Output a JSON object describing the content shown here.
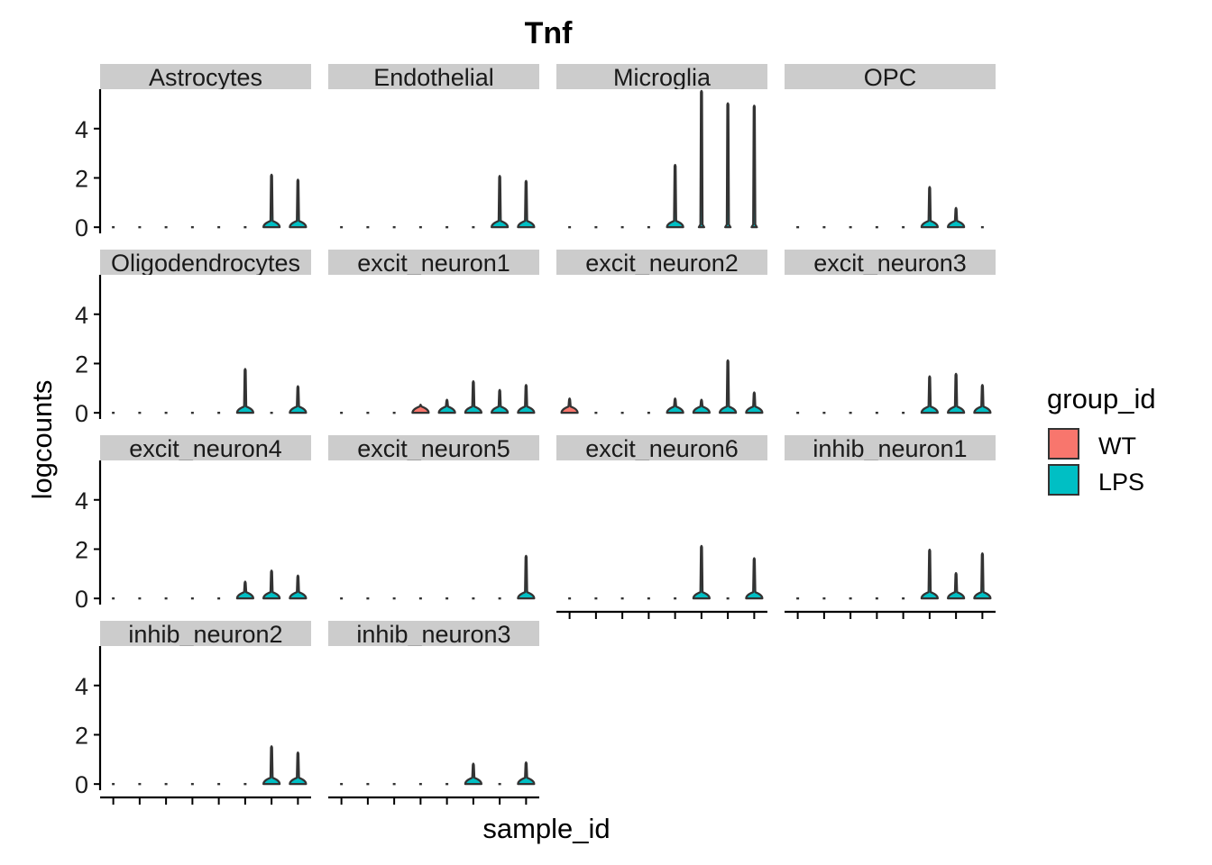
{
  "chart_data": {
    "type": "violin",
    "title": "Tnf",
    "xlabel": "sample_id",
    "ylabel": "logcounts",
    "ylim": [
      -0.25,
      5.6
    ],
    "yticks": [
      0,
      2,
      4
    ],
    "n_samples": 8,
    "legend": {
      "title": "group_id",
      "position": "right",
      "entries": [
        {
          "label": "WT",
          "color": "#F8766D"
        },
        {
          "label": "LPS",
          "color": "#00BFC4"
        }
      ]
    },
    "panels": [
      {
        "name": "Astrocytes",
        "max": [
          0,
          0,
          0,
          0,
          0,
          0,
          2.15,
          1.95
        ]
      },
      {
        "name": "Endothelial",
        "max": [
          0,
          0,
          0,
          0,
          0,
          0,
          2.1,
          1.9
        ]
      },
      {
        "name": "Microglia",
        "max": [
          0,
          0,
          0,
          0,
          2.55,
          5.55,
          5.05,
          4.95
        ]
      },
      {
        "name": "OPC",
        "max": [
          0,
          0,
          0,
          0,
          0,
          1.65,
          0.8,
          0
        ]
      },
      {
        "name": "Oligodendrocytes",
        "max": [
          0,
          0,
          0,
          0,
          0,
          1.8,
          0,
          1.1
        ]
      },
      {
        "name": "excit_neuron1",
        "max": [
          0,
          0,
          0,
          0.35,
          0.55,
          1.3,
          0.95,
          1.15
        ]
      },
      {
        "name": "excit_neuron2",
        "max": [
          0.6,
          0,
          0,
          0,
          0.6,
          0.55,
          2.15,
          0.85
        ]
      },
      {
        "name": "excit_neuron3",
        "max": [
          0,
          0,
          0,
          0,
          0,
          1.5,
          1.6,
          1.15
        ]
      },
      {
        "name": "excit_neuron4",
        "max": [
          0,
          0,
          0,
          0,
          0,
          0.7,
          1.15,
          0.95
        ]
      },
      {
        "name": "excit_neuron5",
        "max": [
          0,
          0,
          0,
          0,
          0,
          0,
          0,
          1.75
        ]
      },
      {
        "name": "excit_neuron6",
        "max": [
          0,
          0,
          0,
          0,
          0,
          2.15,
          0,
          1.65
        ]
      },
      {
        "name": "inhib_neuron1",
        "max": [
          0,
          0,
          0,
          0,
          0,
          2.0,
          1.05,
          1.85
        ]
      },
      {
        "name": "inhib_neuron2",
        "max": [
          0,
          0,
          0,
          0,
          0,
          0,
          1.55,
          1.3
        ]
      },
      {
        "name": "inhib_neuron3",
        "max": [
          0,
          0,
          0,
          0,
          0,
          0.85,
          0,
          0.9
        ]
      }
    ]
  }
}
